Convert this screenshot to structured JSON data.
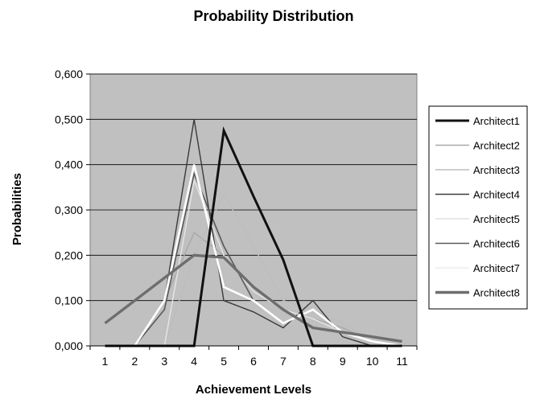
{
  "chart_data": {
    "type": "line",
    "title": "Probability Distribution",
    "xlabel": "Achievement Levels",
    "ylabel": "Probabilities",
    "x": [
      1,
      2,
      3,
      4,
      5,
      6,
      7,
      8,
      9,
      10,
      11
    ],
    "y_ticks": [
      "0,000",
      "0,100",
      "0,200",
      "0,300",
      "0,400",
      "0,500",
      "0,600"
    ],
    "ylim": [
      0,
      0.6
    ],
    "grid": true,
    "legend_position": "right",
    "plot_background": "#c0c0c0",
    "series": [
      {
        "name": "Architect1",
        "color": "#111111",
        "width": 3.0,
        "values": [
          0,
          0,
          0,
          0,
          0.475,
          0.33,
          0.19,
          0,
          0,
          0,
          0
        ]
      },
      {
        "name": "Architect2",
        "color": "#a8a8a8",
        "width": 1.4,
        "values": [
          0,
          0,
          0.1,
          0.25,
          0.2,
          0.12,
          0.08,
          0.06,
          0.04,
          0.01,
          0
        ]
      },
      {
        "name": "Architect3",
        "color": "#bdbdbd",
        "width": 1.4,
        "values": [
          0,
          0,
          0,
          0.2,
          0.335,
          0.22,
          0.1,
          0.08,
          0.05,
          0.01,
          0
        ]
      },
      {
        "name": "Architect4",
        "color": "#3a3a3a",
        "width": 1.4,
        "values": [
          0,
          0,
          0.1,
          0.5,
          0.1,
          0.075,
          0.04,
          0.1,
          0.02,
          0,
          0
        ]
      },
      {
        "name": "Architect5",
        "color": "#e6e6e6",
        "width": 1.4,
        "values": [
          0,
          0,
          0,
          0.365,
          0.2,
          0.12,
          0.08,
          0.06,
          0.03,
          0.01,
          0
        ]
      },
      {
        "name": "Architect6",
        "color": "#5a5a5a",
        "width": 1.6,
        "values": [
          0,
          0,
          0.08,
          0.38,
          0.22,
          0.1,
          0.05,
          0.08,
          0.03,
          0.01,
          0
        ]
      },
      {
        "name": "Architect7",
        "color": "#ffffff",
        "width": 2.6,
        "values": [
          0,
          0,
          0.1,
          0.4,
          0.13,
          0.1,
          0.05,
          0.08,
          0.03,
          0.01,
          0
        ]
      },
      {
        "name": "Architect8",
        "color": "#6e6e6e",
        "width": 3.4,
        "values": [
          0.05,
          0.1,
          0.15,
          0.2,
          0.195,
          0.13,
          0.08,
          0.04,
          0.03,
          0.02,
          0.01
        ]
      }
    ]
  }
}
